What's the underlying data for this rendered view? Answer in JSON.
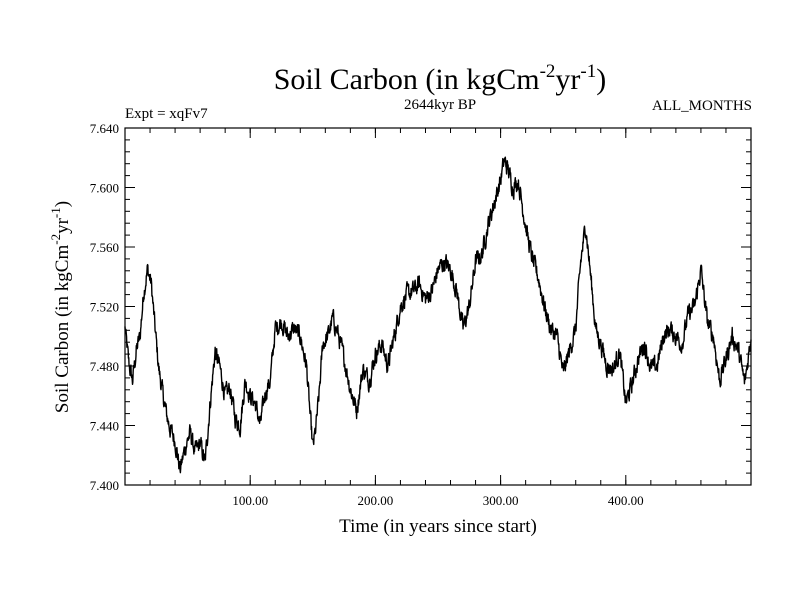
{
  "header": {
    "title_main": "Soil Carbon (in kgCm",
    "title_sup1": "-2",
    "title_mid": "yr",
    "title_sup2": "-1",
    "title_end": ")",
    "expt": "Expt = xqFv7",
    "period": "2644kyr BP",
    "months": "ALL_MONTHS"
  },
  "chart_data": {
    "type": "line",
    "title": "Soil Carbon (in kgCm-2yr-1)",
    "xlabel": "Time (in years since start)",
    "ylabel_main": "Soil Carbon (in kgCm",
    "ylabel_sup1": "-2",
    "ylabel_mid": "yr",
    "ylabel_sup2": "-1",
    "ylabel_end": ")",
    "xlim": [
      0,
      500
    ],
    "ylim": [
      7.4,
      7.64
    ],
    "x_ticks": [
      100,
      200,
      300,
      400
    ],
    "x_tick_labels": [
      "100.00",
      "200.00",
      "300.00",
      "400.00"
    ],
    "y_ticks": [
      7.4,
      7.44,
      7.48,
      7.52,
      7.56,
      7.6,
      7.64
    ],
    "y_tick_labels": [
      "7.400",
      "7.440",
      "7.480",
      "7.520",
      "7.560",
      "7.600",
      "7.640"
    ],
    "grid": false,
    "line_color": "#000000",
    "series": [
      {
        "name": "Soil Carbon",
        "x": [
          0,
          3,
          6,
          9,
          12,
          15,
          18,
          21,
          24,
          27,
          30,
          33,
          36,
          40,
          44,
          48,
          52,
          56,
          60,
          64,
          68,
          72,
          76,
          80,
          84,
          88,
          92,
          96,
          100,
          104,
          108,
          112,
          116,
          120,
          125,
          130,
          135,
          140,
          145,
          148,
          150,
          152,
          155,
          158,
          162,
          166,
          170,
          175,
          180,
          185,
          190,
          195,
          200,
          205,
          210,
          215,
          220,
          225,
          230,
          235,
          240,
          245,
          250,
          255,
          260,
          265,
          270,
          275,
          280,
          285,
          290,
          295,
          300,
          303,
          306,
          310,
          314,
          318,
          322,
          326,
          330,
          335,
          340,
          345,
          350,
          355,
          360,
          364,
          368,
          372,
          376,
          380,
          385,
          390,
          395,
          400,
          405,
          410,
          415,
          420,
          425,
          430,
          435,
          440,
          445,
          450,
          455,
          460,
          465,
          470,
          475,
          480,
          485,
          490,
          495,
          500
        ],
        "values": [
          7.505,
          7.482,
          7.47,
          7.49,
          7.5,
          7.53,
          7.545,
          7.535,
          7.505,
          7.478,
          7.462,
          7.448,
          7.438,
          7.43,
          7.41,
          7.425,
          7.435,
          7.422,
          7.428,
          7.415,
          7.455,
          7.49,
          7.478,
          7.46,
          7.465,
          7.445,
          7.44,
          7.47,
          7.46,
          7.455,
          7.44,
          7.462,
          7.47,
          7.505,
          7.51,
          7.5,
          7.505,
          7.5,
          7.48,
          7.445,
          7.425,
          7.435,
          7.46,
          7.495,
          7.5,
          7.512,
          7.502,
          7.485,
          7.465,
          7.45,
          7.478,
          7.47,
          7.488,
          7.495,
          7.48,
          7.5,
          7.52,
          7.528,
          7.53,
          7.535,
          7.525,
          7.53,
          7.545,
          7.55,
          7.545,
          7.53,
          7.505,
          7.52,
          7.55,
          7.555,
          7.575,
          7.59,
          7.605,
          7.618,
          7.612,
          7.6,
          7.605,
          7.585,
          7.565,
          7.55,
          7.54,
          7.52,
          7.505,
          7.5,
          7.475,
          7.49,
          7.505,
          7.55,
          7.575,
          7.54,
          7.505,
          7.495,
          7.48,
          7.478,
          7.49,
          7.455,
          7.468,
          7.485,
          7.495,
          7.478,
          7.48,
          7.5,
          7.505,
          7.5,
          7.495,
          7.515,
          7.52,
          7.545,
          7.51,
          7.5,
          7.47,
          7.485,
          7.5,
          7.49,
          7.468,
          7.5
        ]
      }
    ]
  }
}
